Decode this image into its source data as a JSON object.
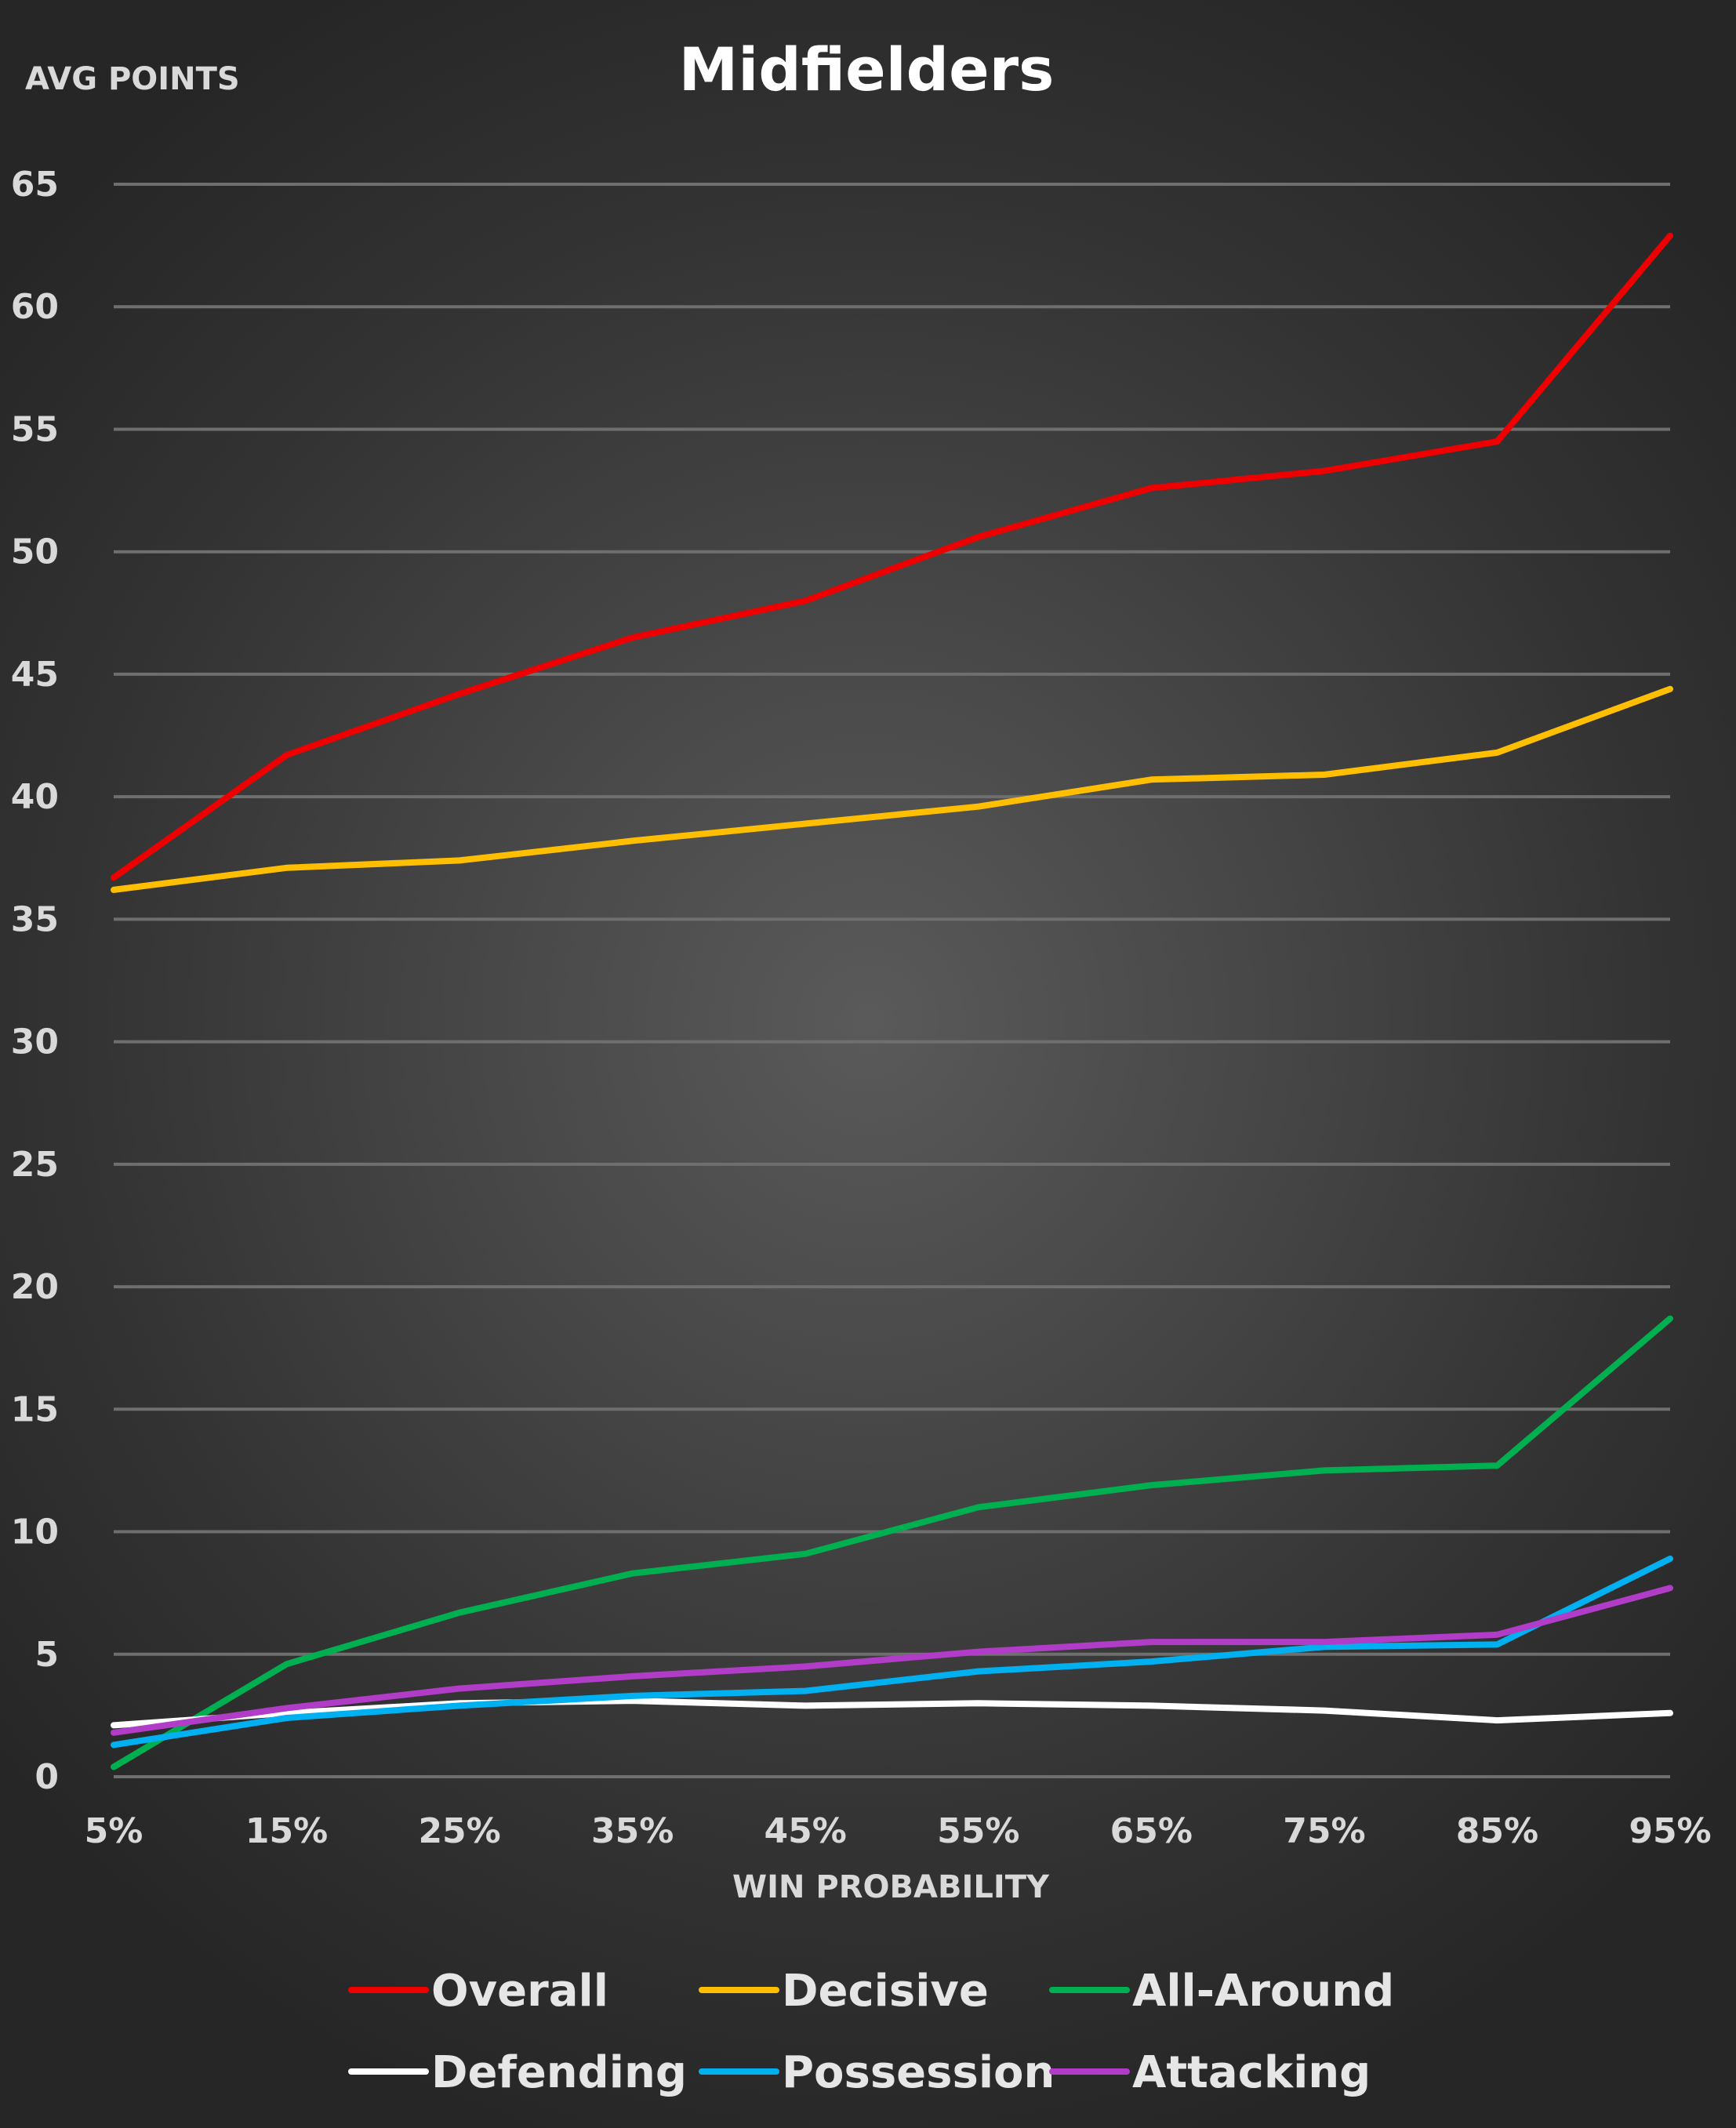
{
  "chart_data": {
    "type": "line",
    "title": "Midfielders",
    "ylabel": "AVG POINTS",
    "xlabel": "WIN PROBABILITY",
    "categories": [
      "5%",
      "15%",
      "25%",
      "35%",
      "45%",
      "55%",
      "65%",
      "75%",
      "85%",
      "95%"
    ],
    "ylim": [
      0,
      65
    ],
    "yticks": [
      0,
      5,
      10,
      15,
      20,
      25,
      30,
      35,
      40,
      45,
      50,
      55,
      60,
      65
    ],
    "grid": true,
    "legend_position": "bottom",
    "series": [
      {
        "name": "Overall",
        "color": "#ee0000",
        "values": [
          36.7,
          41.7,
          44.2,
          46.5,
          48.0,
          50.6,
          52.6,
          53.3,
          54.5,
          62.9
        ]
      },
      {
        "name": "Decisive",
        "color": "#ffbf00",
        "values": [
          36.2,
          37.1,
          37.4,
          38.2,
          38.9,
          39.6,
          40.7,
          40.9,
          41.8,
          44.4
        ]
      },
      {
        "name": "All-Around",
        "color": "#00b050",
        "values": [
          0.4,
          4.6,
          6.7,
          8.3,
          9.1,
          11.0,
          11.9,
          12.5,
          12.7,
          18.7
        ]
      },
      {
        "name": "Defending",
        "color": "#ffffff",
        "values": [
          2.1,
          2.6,
          3.0,
          3.1,
          2.9,
          3.0,
          2.9,
          2.7,
          2.3,
          2.6
        ]
      },
      {
        "name": "Possession",
        "color": "#00b0f0",
        "values": [
          1.3,
          2.4,
          2.9,
          3.3,
          3.5,
          4.3,
          4.7,
          5.3,
          5.4,
          8.9
        ]
      },
      {
        "name": "Attacking",
        "color": "#b03cc8",
        "values": [
          1.8,
          2.8,
          3.6,
          4.1,
          4.5,
          5.1,
          5.5,
          5.5,
          5.8,
          7.7
        ]
      }
    ]
  }
}
